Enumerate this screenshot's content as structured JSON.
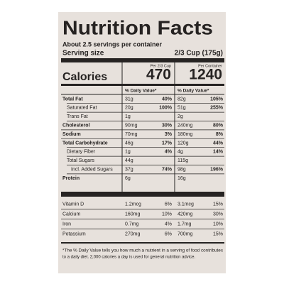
{
  "title": "Nutrition Facts",
  "servings": "About 2.5 servings per container",
  "serving_size_label": "Serving size",
  "serving_size": "2/3 Cup (175g)",
  "calories_label": "Calories",
  "columns": [
    {
      "header": "Per 2/3 Cup",
      "calories": "470"
    },
    {
      "header": "Per Container",
      "calories": "1240"
    }
  ],
  "dv_header": "% Daily Value*",
  "nutrients": [
    {
      "name": "Total Fat",
      "bold": true,
      "indent": 0,
      "cells": [
        [
          "31g",
          "40%"
        ],
        [
          "82g",
          "105%"
        ]
      ]
    },
    {
      "name": "Saturated Fat",
      "bold": false,
      "indent": 1,
      "cells": [
        [
          "20g",
          "100%"
        ],
        [
          "51g",
          "255%"
        ]
      ]
    },
    {
      "name": "Trans Fat",
      "bold": false,
      "indent": 1,
      "cells": [
        [
          "1g"
        ],
        [
          "2g"
        ]
      ]
    },
    {
      "name": "Cholesterol",
      "bold": true,
      "indent": 0,
      "cells": [
        [
          "90mg",
          "30%"
        ],
        [
          "240mg",
          "80%"
        ]
      ]
    },
    {
      "name": "Sodium",
      "bold": true,
      "indent": 0,
      "cells": [
        [
          "70mg",
          "3%"
        ],
        [
          "180mg",
          "8%"
        ]
      ]
    },
    {
      "name": "Total Carbohydrate",
      "bold": true,
      "indent": 0,
      "cells": [
        [
          "46g",
          "17%"
        ],
        [
          "120g",
          "44%"
        ]
      ]
    },
    {
      "name": "Dietary Fiber",
      "bold": false,
      "indent": 1,
      "cells": [
        [
          "1g",
          "4%"
        ],
        [
          "4g",
          "14%"
        ]
      ]
    },
    {
      "name": "Total Sugars",
      "bold": false,
      "indent": 1,
      "cells": [
        [
          "44g"
        ],
        [
          "115g"
        ]
      ]
    },
    {
      "name": "Incl. Added Sugars",
      "bold": false,
      "indent": 2,
      "cells": [
        [
          "37g",
          "74%"
        ],
        [
          "98g",
          "196%"
        ]
      ]
    },
    {
      "name": "Protein",
      "bold": true,
      "indent": 0,
      "cells": [
        [
          "6g"
        ],
        [
          "16g"
        ]
      ]
    }
  ],
  "vitamins": [
    {
      "name": "Vitamin D",
      "cells": [
        [
          "1.2mcg",
          "6%"
        ],
        [
          "3.1mcg",
          "15%"
        ]
      ]
    },
    {
      "name": "Calcium",
      "cells": [
        [
          "160mg",
          "10%"
        ],
        [
          "420mg",
          "30%"
        ]
      ]
    },
    {
      "name": "Iron",
      "cells": [
        [
          "0.7mg",
          "4%"
        ],
        [
          "1.7mg",
          "10%"
        ]
      ]
    },
    {
      "name": "Potassium",
      "cells": [
        [
          "270mg",
          "6%"
        ],
        [
          "700mg",
          "15%"
        ]
      ]
    }
  ],
  "footnote": [
    "*The % Daily Value tells you how much a nutrient in a serving of food contributes",
    "to a daily diet. 2,000 calories a day is used for general nutrition advice."
  ]
}
